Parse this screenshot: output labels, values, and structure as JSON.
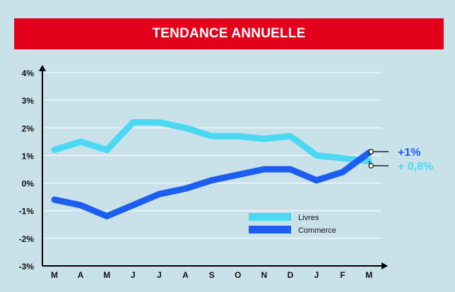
{
  "header": {
    "title": "TENDANCE ANNUELLE"
  },
  "chart_data": {
    "type": "line",
    "title": "TENDANCE ANNUELLE",
    "xlabel": "",
    "ylabel": "",
    "categories": [
      "M",
      "A",
      "M",
      "J",
      "J",
      "A",
      "S",
      "O",
      "N",
      "D",
      "J",
      "F",
      "M"
    ],
    "ylim": [
      -3,
      4
    ],
    "yticks": [
      "4%",
      "3%",
      "2%",
      "1%",
      "0%",
      "-1%",
      "-2%",
      "-3%"
    ],
    "grid": true,
    "legend_position": "bottom-center",
    "series": [
      {
        "name": "Livres",
        "color": "#4ad8f2",
        "values": [
          1.2,
          1.5,
          1.2,
          2.2,
          2.2,
          2.0,
          1.7,
          1.7,
          1.6,
          1.7,
          1.0,
          0.9,
          0.8
        ],
        "end_label": "+ 0,8%"
      },
      {
        "name": "Commerce",
        "color": "#1d5df0",
        "values": [
          -0.6,
          -0.8,
          -1.2,
          -0.8,
          -0.4,
          -0.2,
          0.1,
          0.3,
          0.5,
          0.5,
          0.1,
          0.4,
          1.1
        ],
        "end_label": "+1%"
      }
    ]
  },
  "colors": {
    "background": "#c9e2ea",
    "header": "#e3001b",
    "axis": "#000000",
    "grid": "#ffffff"
  }
}
